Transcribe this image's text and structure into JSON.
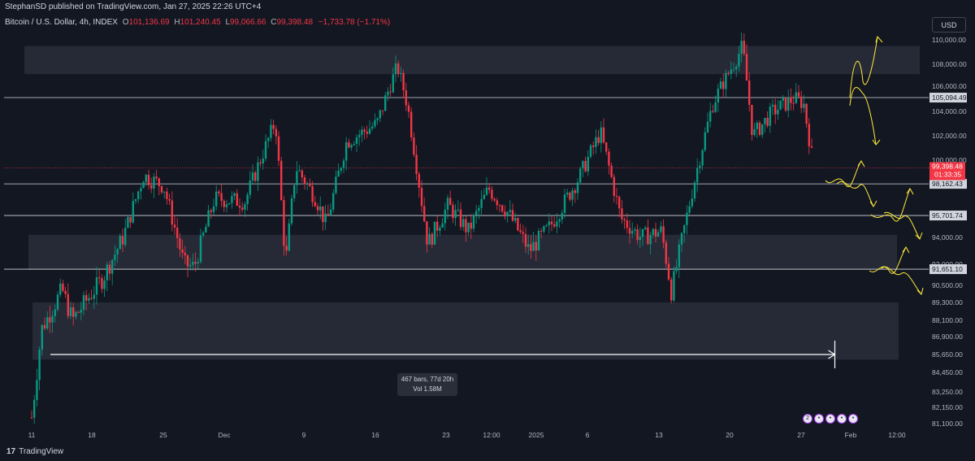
{
  "header": {
    "publisher": "StephanSD published on TradingView.com, Jan 27, 2025 22:26 UTC+4"
  },
  "legend": {
    "symbol": "Bitcoin / U.S. Dollar, 4h, INDEX",
    "o_label": "O",
    "o_value": "101,136.69",
    "h_label": "H",
    "h_value": "101,240.45",
    "l_label": "L",
    "l_value": "99,066.66",
    "c_label": "C",
    "c_value": "99,398.48",
    "change": "−1,733.78 (−1.71%)"
  },
  "currency": "USD",
  "footer": {
    "logo": "TradingView",
    "logo_mark": "17"
  },
  "measure": {
    "bars": "467 bars, 77d 20h",
    "vol": "Vol 1.58M"
  },
  "events": [
    "2",
    "•",
    "•",
    "•",
    "•"
  ],
  "colors": {
    "background": "#131722",
    "up": "#089981",
    "down": "#f23645",
    "zone": "#2a2e39",
    "projection": "#ffeb3b",
    "text": "#d1d4dc"
  },
  "chart_data": {
    "type": "candlestick",
    "symbol": "Bitcoin / U.S. Dollar",
    "interval": "4h",
    "y_scale_ticks": [
      "110,000.00",
      "108,000.00",
      "106,000.00",
      "104,000.00",
      "102,000.00",
      "100,000.00",
      "94,000.00",
      "92,000.00",
      "90,500.00",
      "89,300.00",
      "88,100.00",
      "86,900.00",
      "85,650.00",
      "84,450.00",
      "83,250.00",
      "82,150.00",
      "81,100.00"
    ],
    "y_ticks_nonlinear": true,
    "x_tick_labels": [
      "11",
      "18",
      "25",
      "Dec",
      "9",
      "16",
      "23",
      "12:00",
      "2025",
      "6",
      "13",
      "20",
      "27",
      "Feb",
      "12:00"
    ],
    "approx_path": [
      {
        "d": "Nov 11",
        "p": 81500
      },
      {
        "d": "Nov 12",
        "p": 87500
      },
      {
        "d": "Nov 14",
        "p": 90200
      },
      {
        "d": "Nov 15",
        "p": 88100
      },
      {
        "d": "Nov 18",
        "p": 91000
      },
      {
        "d": "Nov 20",
        "p": 94000
      },
      {
        "d": "Nov 22",
        "p": 98800
      },
      {
        "d": "Nov 24",
        "p": 98000
      },
      {
        "d": "Nov 26",
        "p": 92000
      },
      {
        "d": "Nov 27",
        "p": 91800
      },
      {
        "d": "Nov 29",
        "p": 97000
      },
      {
        "d": "Dec 2",
        "p": 96800
      },
      {
        "d": "Dec 5",
        "p": 103200
      },
      {
        "d": "Dec 6",
        "p": 92000
      },
      {
        "d": "Dec 7",
        "p": 99500
      },
      {
        "d": "Dec 9",
        "p": 97000
      },
      {
        "d": "Dec 10",
        "p": 95000
      },
      {
        "d": "Dec 12",
        "p": 101500
      },
      {
        "d": "Dec 15",
        "p": 103000
      },
      {
        "d": "Dec 17",
        "p": 107800
      },
      {
        "d": "Dec 18",
        "p": 104500
      },
      {
        "d": "Dec 20",
        "p": 93500
      },
      {
        "d": "Dec 22",
        "p": 96500
      },
      {
        "d": "Dec 24",
        "p": 94500
      },
      {
        "d": "Dec 26",
        "p": 97800
      },
      {
        "d": "Dec 28",
        "p": 95800
      },
      {
        "d": "Dec 30",
        "p": 93000
      },
      {
        "d": "Jan 1",
        "p": 94800
      },
      {
        "d": "Jan 4",
        "p": 98800
      },
      {
        "d": "Jan 6",
        "p": 102300
      },
      {
        "d": "Jan 8",
        "p": 95500
      },
      {
        "d": "Jan 10",
        "p": 94000
      },
      {
        "d": "Jan 12",
        "p": 94500
      },
      {
        "d": "Jan 13",
        "p": 90000
      },
      {
        "d": "Jan 15",
        "p": 97500
      },
      {
        "d": "Jan 17",
        "p": 104500
      },
      {
        "d": "Jan 20",
        "p": 109500
      },
      {
        "d": "Jan 21",
        "p": 102000
      },
      {
        "d": "Jan 23",
        "p": 104000
      },
      {
        "d": "Jan 25",
        "p": 105000
      },
      {
        "d": "Jan 26",
        "p": 104700
      },
      {
        "d": "Jan 27",
        "p": 99398
      }
    ],
    "last_price": {
      "value": "99,398.48",
      "countdown": "01:33:35"
    },
    "horizontal_levels": [
      "105,094.49",
      "98,162.43",
      "95,701.74",
      "91,651.10"
    ],
    "zones": [
      {
        "from": 107100,
        "to": 109500
      },
      {
        "from": 91600,
        "to": 94200
      },
      {
        "from": 85300,
        "to": 89300
      }
    ],
    "measure_range": {
      "from": "Nov 13",
      "to": "Jan 27"
    }
  }
}
